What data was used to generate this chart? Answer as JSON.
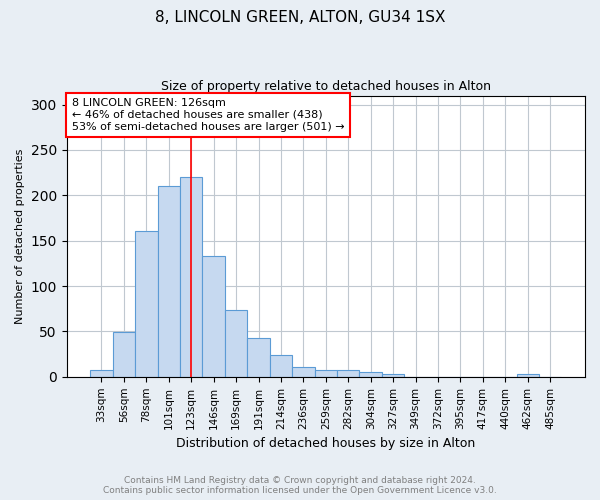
{
  "title": "8, LINCOLN GREEN, ALTON, GU34 1SX",
  "subtitle": "Size of property relative to detached houses in Alton",
  "xlabel": "Distribution of detached houses by size in Alton",
  "ylabel": "Number of detached properties",
  "footnote1": "Contains HM Land Registry data © Crown copyright and database right 2024.",
  "footnote2": "Contains public sector information licensed under the Open Government Licence v3.0.",
  "categories": [
    "33sqm",
    "56sqm",
    "78sqm",
    "101sqm",
    "123sqm",
    "146sqm",
    "169sqm",
    "191sqm",
    "214sqm",
    "236sqm",
    "259sqm",
    "282sqm",
    "304sqm",
    "327sqm",
    "349sqm",
    "372sqm",
    "395sqm",
    "417sqm",
    "440sqm",
    "462sqm",
    "485sqm"
  ],
  "values": [
    7,
    49,
    161,
    210,
    220,
    133,
    74,
    43,
    24,
    11,
    8,
    7,
    5,
    3,
    0,
    0,
    0,
    0,
    0,
    3,
    0
  ],
  "bar_color": "#c6d9f0",
  "bar_edge_color": "#5b9bd5",
  "vline_x": 4.0,
  "vline_color": "red",
  "annotation_line1": "8 LINCOLN GREEN: 126sqm",
  "annotation_line2": "← 46% of detached houses are smaller (438)",
  "annotation_line3": "53% of semi-detached houses are larger (501) →",
  "annotation_box_color": "white",
  "annotation_box_edge": "red",
  "ylim": [
    0,
    310
  ],
  "yticks": [
    0,
    50,
    100,
    150,
    200,
    250,
    300
  ],
  "background_color": "#e8eef4",
  "plot_bg_color": "white",
  "grid_color": "#c0c8d0",
  "title_fontsize": 11,
  "subtitle_fontsize": 9,
  "xlabel_fontsize": 9,
  "ylabel_fontsize": 8,
  "tick_fontsize": 7.5,
  "annot_fontsize": 8,
  "footnote_fontsize": 6.5
}
